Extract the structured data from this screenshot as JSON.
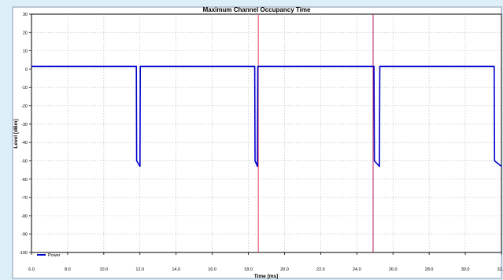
{
  "chart_data": {
    "type": "line",
    "title": "Maximum Channel Occupancy Time",
    "xlabel": "Time [ms]",
    "ylabel": "Level [dBm]",
    "xlim": [
      6.0,
      32.0
    ],
    "ylim": [
      -100,
      30
    ],
    "x_ticks": [
      "6.0",
      "8.0",
      "10.0",
      "12.0",
      "14.0",
      "16.0",
      "18.0",
      "20.0",
      "22.0",
      "24.0",
      "26.0",
      "28.0",
      "30.0",
      "32.0"
    ],
    "x_tick_values": [
      6,
      8,
      10,
      12,
      14,
      16,
      18,
      20,
      22,
      24,
      26,
      28,
      30,
      32
    ],
    "y_ticks": [
      "30",
      "20",
      "10",
      "0",
      "-10",
      "-20",
      "-30",
      "-40",
      "-50",
      "-60",
      "-70",
      "-80",
      "-90",
      "-100"
    ],
    "y_tick_values": [
      30,
      20,
      10,
      0,
      -10,
      -20,
      -30,
      -40,
      -50,
      -60,
      -70,
      -80,
      -90,
      -100
    ],
    "grid": true,
    "legend_position": "bottom-left",
    "series": [
      {
        "name": "Power",
        "color": "#0000cc",
        "x": [
          6.0,
          11.8,
          11.82,
          12.0,
          12.02,
          18.35,
          18.37,
          18.5,
          18.52,
          24.95,
          24.97,
          25.25,
          25.27,
          31.6,
          31.62,
          32.0
        ],
        "y": [
          1.5,
          1.5,
          -50,
          -53,
          1.5,
          1.5,
          -50,
          -53,
          1.5,
          1.5,
          -50,
          -53,
          1.5,
          1.5,
          -50,
          -53
        ]
      }
    ],
    "markers": [
      {
        "x": 18.55,
        "color": "#e8405a"
      },
      {
        "x": 24.9,
        "color": "#b02060"
      }
    ]
  }
}
